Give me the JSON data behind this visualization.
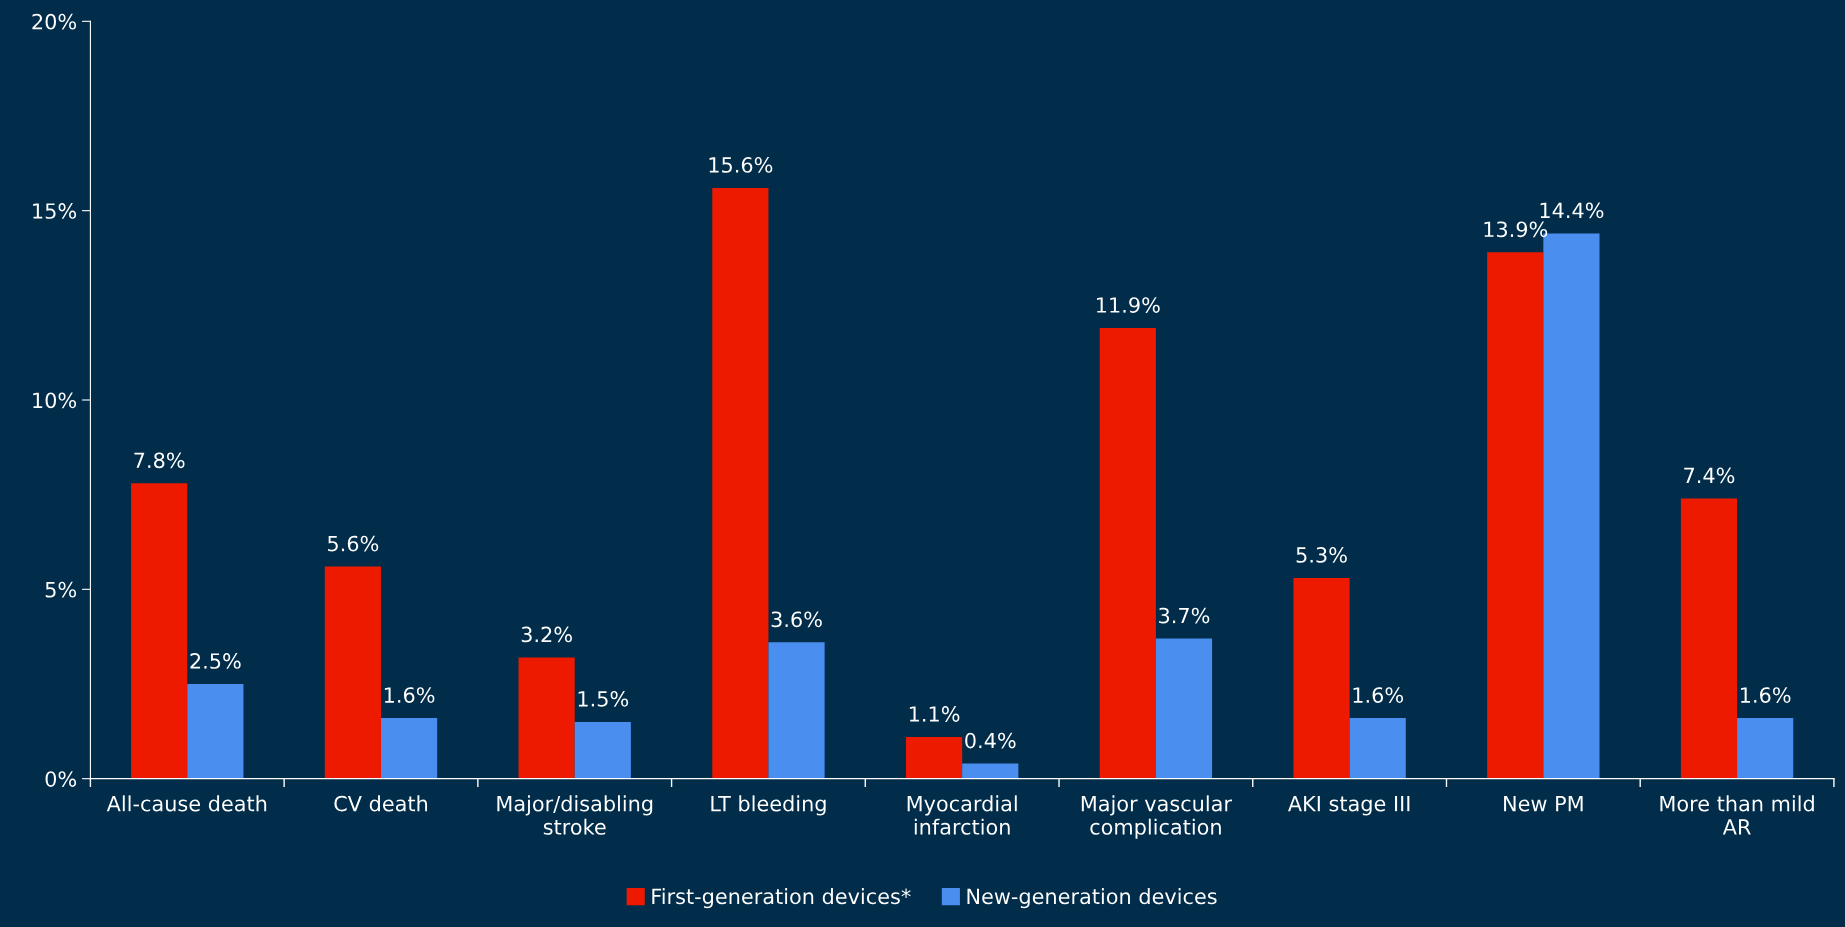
{
  "chart_data": {
    "type": "bar",
    "categories": [
      "All-cause death",
      "CV death",
      "Major/disabling\nstroke",
      "LT bleeding",
      "Myocardial\ninfarction",
      "Major vascular\ncomplication",
      "AKI stage III",
      "New PM",
      "More than mild\nAR"
    ],
    "series": [
      {
        "name": "First-generation devices*",
        "color": "#ee1a00",
        "values": [
          7.8,
          5.6,
          3.2,
          15.6,
          1.1,
          11.9,
          5.3,
          13.9,
          7.4
        ],
        "value_labels": [
          "7.8%",
          "5.6%",
          "3.2%",
          "15.6%",
          "1.1%",
          "11.9%",
          "5.3%",
          "13.9%",
          "7.4%"
        ]
      },
      {
        "name": "New-generation devices",
        "color": "#4a8ef0",
        "values": [
          2.5,
          1.6,
          1.5,
          3.6,
          0.4,
          3.7,
          1.6,
          14.4,
          1.6
        ],
        "value_labels": [
          "2.5%",
          "1.6%",
          "1.5%",
          "3.6%",
          "0.4%",
          "3.7%",
          "1.6%",
          "14.4%",
          "1.6%"
        ]
      }
    ],
    "ylim": [
      0,
      20
    ],
    "yticks": [
      {
        "value": 0,
        "label": "0%"
      },
      {
        "value": 5,
        "label": "5%"
      },
      {
        "value": 10,
        "label": "10%"
      },
      {
        "value": 15,
        "label": "15%"
      },
      {
        "value": 20,
        "label": "20%"
      }
    ],
    "grid": false,
    "legend": "bottom"
  }
}
